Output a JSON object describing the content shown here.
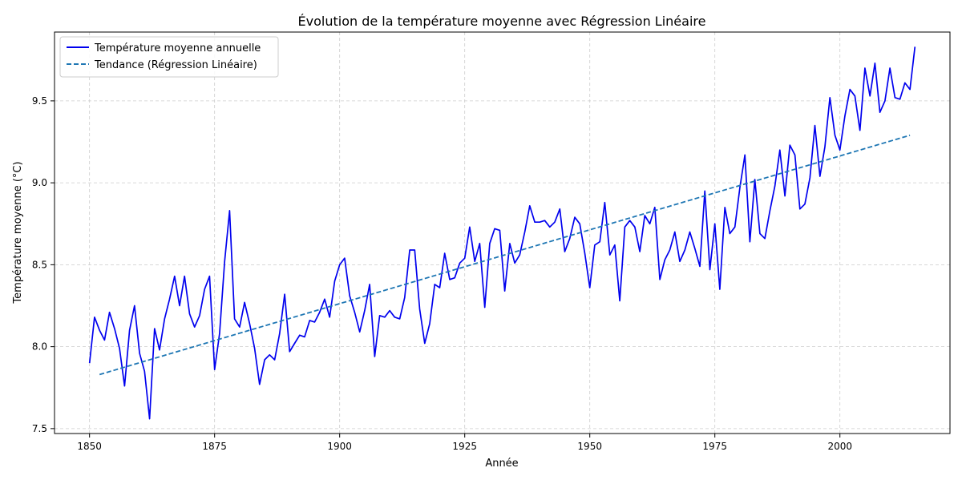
{
  "chart_data": {
    "type": "line",
    "title": "Évolution de la température moyenne avec Régression Linéaire",
    "xlabel": "Année",
    "ylabel": "Température moyenne (°C)",
    "xlim": [
      1843,
      2022
    ],
    "ylim": [
      7.47,
      9.92
    ],
    "xticks": [
      1850,
      1875,
      1900,
      1925,
      1950,
      1975,
      2000
    ],
    "yticks": [
      7.5,
      8.0,
      8.5,
      9.0,
      9.5
    ],
    "ytick_labels": [
      "7.5",
      "8.0",
      "8.5",
      "9.0",
      "9.5"
    ],
    "grid": true,
    "legend_position": "top-left",
    "series": [
      {
        "name": "Température moyenne annuelle",
        "color": "#0000ee",
        "style": "solid",
        "x_start": 1850,
        "values": [
          7.9,
          8.18,
          8.1,
          8.04,
          8.21,
          8.11,
          7.99,
          7.76,
          8.1,
          8.25,
          7.96,
          7.85,
          7.56,
          8.11,
          7.98,
          8.17,
          8.29,
          8.43,
          8.25,
          8.43,
          8.2,
          8.12,
          8.19,
          8.35,
          8.43,
          7.86,
          8.08,
          8.52,
          8.83,
          8.17,
          8.12,
          8.27,
          8.14,
          7.99,
          7.77,
          7.92,
          7.95,
          7.92,
          8.08,
          8.32,
          7.97,
          8.02,
          8.07,
          8.06,
          8.16,
          8.15,
          8.21,
          8.29,
          8.18,
          8.4,
          8.5,
          8.54,
          8.31,
          8.21,
          8.09,
          8.22,
          8.38,
          7.94,
          8.19,
          8.18,
          8.22,
          8.18,
          8.17,
          8.3,
          8.59,
          8.59,
          8.23,
          8.02,
          8.14,
          8.38,
          8.36,
          8.57,
          8.41,
          8.42,
          8.51,
          8.54,
          8.73,
          8.52,
          8.63,
          8.24,
          8.63,
          8.72,
          8.71,
          8.34,
          8.63,
          8.51,
          8.56,
          8.7,
          8.86,
          8.76,
          8.76,
          8.77,
          8.73,
          8.76,
          8.84,
          8.58,
          8.66,
          8.79,
          8.75,
          8.57,
          8.36,
          8.62,
          8.64,
          8.88,
          8.56,
          8.62,
          8.28,
          8.73,
          8.77,
          8.73,
          8.58,
          8.8,
          8.75,
          8.85,
          8.41,
          8.53,
          8.59,
          8.7,
          8.52,
          8.59,
          8.7,
          8.6,
          8.49,
          8.95,
          8.47,
          8.75,
          8.35,
          8.85,
          8.69,
          8.73,
          8.97,
          9.17,
          8.64,
          9.02,
          8.69,
          8.66,
          8.83,
          8.98,
          9.2,
          8.92,
          9.23,
          9.17,
          8.84,
          8.87,
          9.03,
          9.35,
          9.04,
          9.22,
          9.52,
          9.29,
          9.2,
          9.41,
          9.57,
          9.53,
          9.32,
          9.7,
          9.53,
          9.73,
          9.43,
          9.5,
          9.7,
          9.52,
          9.51,
          9.61,
          9.57,
          9.83
        ]
      },
      {
        "name": "Tendance (Régression Linéaire)",
        "color": "#1f77b4",
        "style": "dashed",
        "x": [
          1852,
          2014
        ],
        "values": [
          7.83,
          9.29
        ]
      }
    ]
  }
}
